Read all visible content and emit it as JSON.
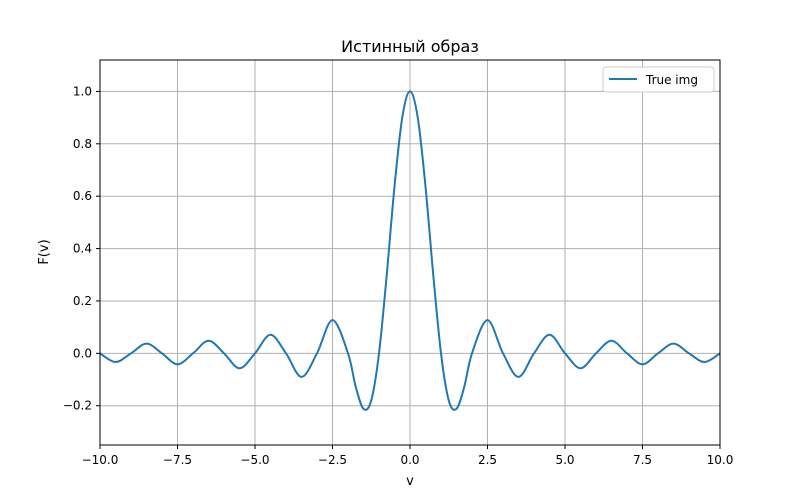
{
  "chart_data": {
    "type": "line",
    "title": "Истинный образ",
    "xlabel": "v",
    "ylabel": "F(v)",
    "xlim": [
      -10,
      10
    ],
    "ylim": [
      -0.35,
      1.12
    ],
    "xticks": [
      -10,
      -7.5,
      -5,
      -2.5,
      0,
      2.5,
      5,
      7.5,
      10
    ],
    "xtick_labels": [
      "−10.0",
      "−7.5",
      "−5.0",
      "−2.5",
      "0.0",
      "2.5",
      "5.0",
      "7.5",
      "10.0"
    ],
    "yticks": [
      -0.2,
      0,
      0.2,
      0.4,
      0.6,
      0.8,
      1.0
    ],
    "ytick_labels": [
      "−0.2",
      "0.0",
      "0.2",
      "0.4",
      "0.6",
      "0.8",
      "1.0"
    ],
    "grid": true,
    "legend_position": "top-right",
    "series": [
      {
        "name": "True img",
        "color": "#1f77b4",
        "x": [
          -10.0,
          -9.5,
          -9.0,
          -8.5,
          -8.0,
          -7.5,
          -7.0,
          -6.5,
          -6.0,
          -5.5,
          -5.0,
          -4.5,
          -4.0,
          -3.5,
          -3.0,
          -2.5,
          -2.0,
          -1.75,
          -1.5,
          -1.25,
          -1.0,
          -0.75,
          -0.5,
          -0.25,
          0.0,
          0.25,
          0.5,
          0.75,
          1.0,
          1.25,
          1.5,
          1.75,
          2.0,
          2.5,
          3.0,
          3.5,
          4.0,
          4.5,
          5.0,
          5.5,
          6.0,
          6.5,
          7.0,
          7.5,
          8.0,
          8.5,
          9.0,
          9.5,
          10.0
        ],
        "y": [
          0.0,
          -0.033,
          0.0,
          0.037,
          0.0,
          -0.042,
          0.0,
          0.048,
          0.0,
          -0.057,
          0.0,
          0.071,
          0.0,
          -0.09,
          0.0,
          0.127,
          0.0,
          -0.128,
          -0.212,
          -0.18,
          0.0,
          0.3,
          0.637,
          0.9,
          1.0,
          0.9,
          0.637,
          0.3,
          0.0,
          -0.18,
          -0.212,
          -0.128,
          0.0,
          0.127,
          0.0,
          -0.09,
          0.0,
          0.071,
          0.0,
          -0.057,
          0.0,
          0.048,
          0.0,
          -0.042,
          0.0,
          0.037,
          0.0,
          -0.033,
          0.0
        ]
      }
    ]
  }
}
